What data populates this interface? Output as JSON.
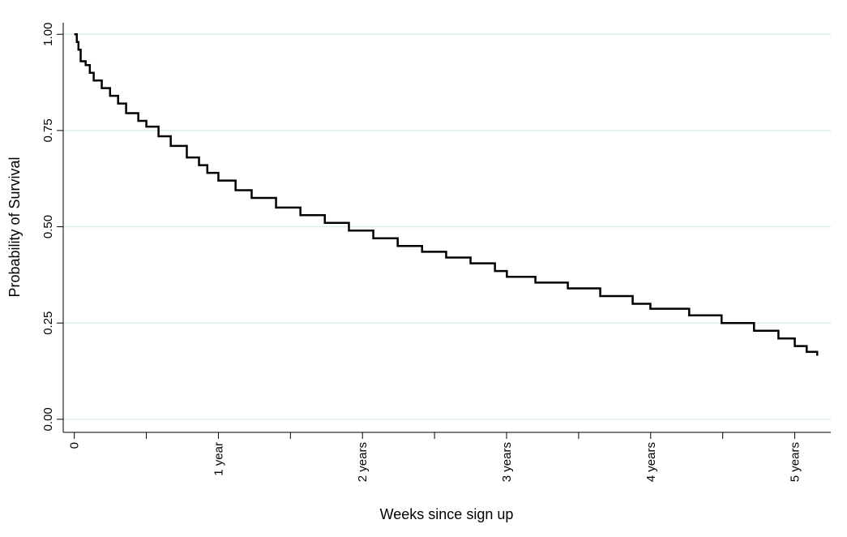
{
  "chart_data": {
    "type": "step-line",
    "x_label": "Weeks since sign up",
    "y_label": "Probability of Survival",
    "x": [
      0,
      0.9,
      1.5,
      2.3,
      4.1,
      5.6,
      7,
      9.9,
      12.9,
      15.8,
      18.7,
      23.1,
      26,
      30.4,
      34.8,
      40.6,
      45,
      48,
      52,
      58.2,
      64,
      72.8,
      81.6,
      90.4,
      99.1,
      107.9,
      116.7,
      125.5,
      134.2,
      143,
      151.8,
      156.1,
      166.4,
      178.1,
      189.8,
      201.5,
      207.9,
      221.9,
      233.6,
      245.3,
      254.1,
      260,
      264.3,
      268.1
    ],
    "series": [
      {
        "name": "Survival",
        "color": "#000000",
        "values": [
          1.0,
          0.98,
          0.96,
          0.93,
          0.92,
          0.9,
          0.88,
          0.86,
          0.84,
          0.82,
          0.795,
          0.775,
          0.76,
          0.735,
          0.71,
          0.68,
          0.66,
          0.64,
          0.62,
          0.595,
          0.575,
          0.55,
          0.53,
          0.51,
          0.49,
          0.47,
          0.45,
          0.435,
          0.42,
          0.405,
          0.385,
          0.37,
          0.355,
          0.34,
          0.32,
          0.3,
          0.287,
          0.27,
          0.25,
          0.23,
          0.21,
          0.19,
          0.175,
          0.165
        ]
      }
    ],
    "xlim": [
      -4,
      273
    ],
    "ylim": [
      -0.034,
      1.03
    ],
    "xticks": [
      0,
      {
        "value": 52,
        "label": "1 year"
      },
      {
        "value": 104,
        "label": "2 years"
      },
      {
        "value": 156,
        "label": "3 years"
      },
      {
        "value": 208,
        "label": "4 years"
      },
      {
        "value": 260,
        "label": "5 years"
      }
    ],
    "x_minor_ticks": [
      26,
      78,
      130,
      182,
      234
    ],
    "yticks": [
      {
        "value": 0,
        "label": "0.00"
      },
      {
        "value": 0.25,
        "label": "0.25"
      },
      {
        "value": 0.5,
        "label": "0.50"
      },
      {
        "value": 0.75,
        "label": "0.75"
      },
      {
        "value": 1,
        "label": "1.00"
      }
    ],
    "grid": true,
    "grid_color": "#dcebee"
  }
}
